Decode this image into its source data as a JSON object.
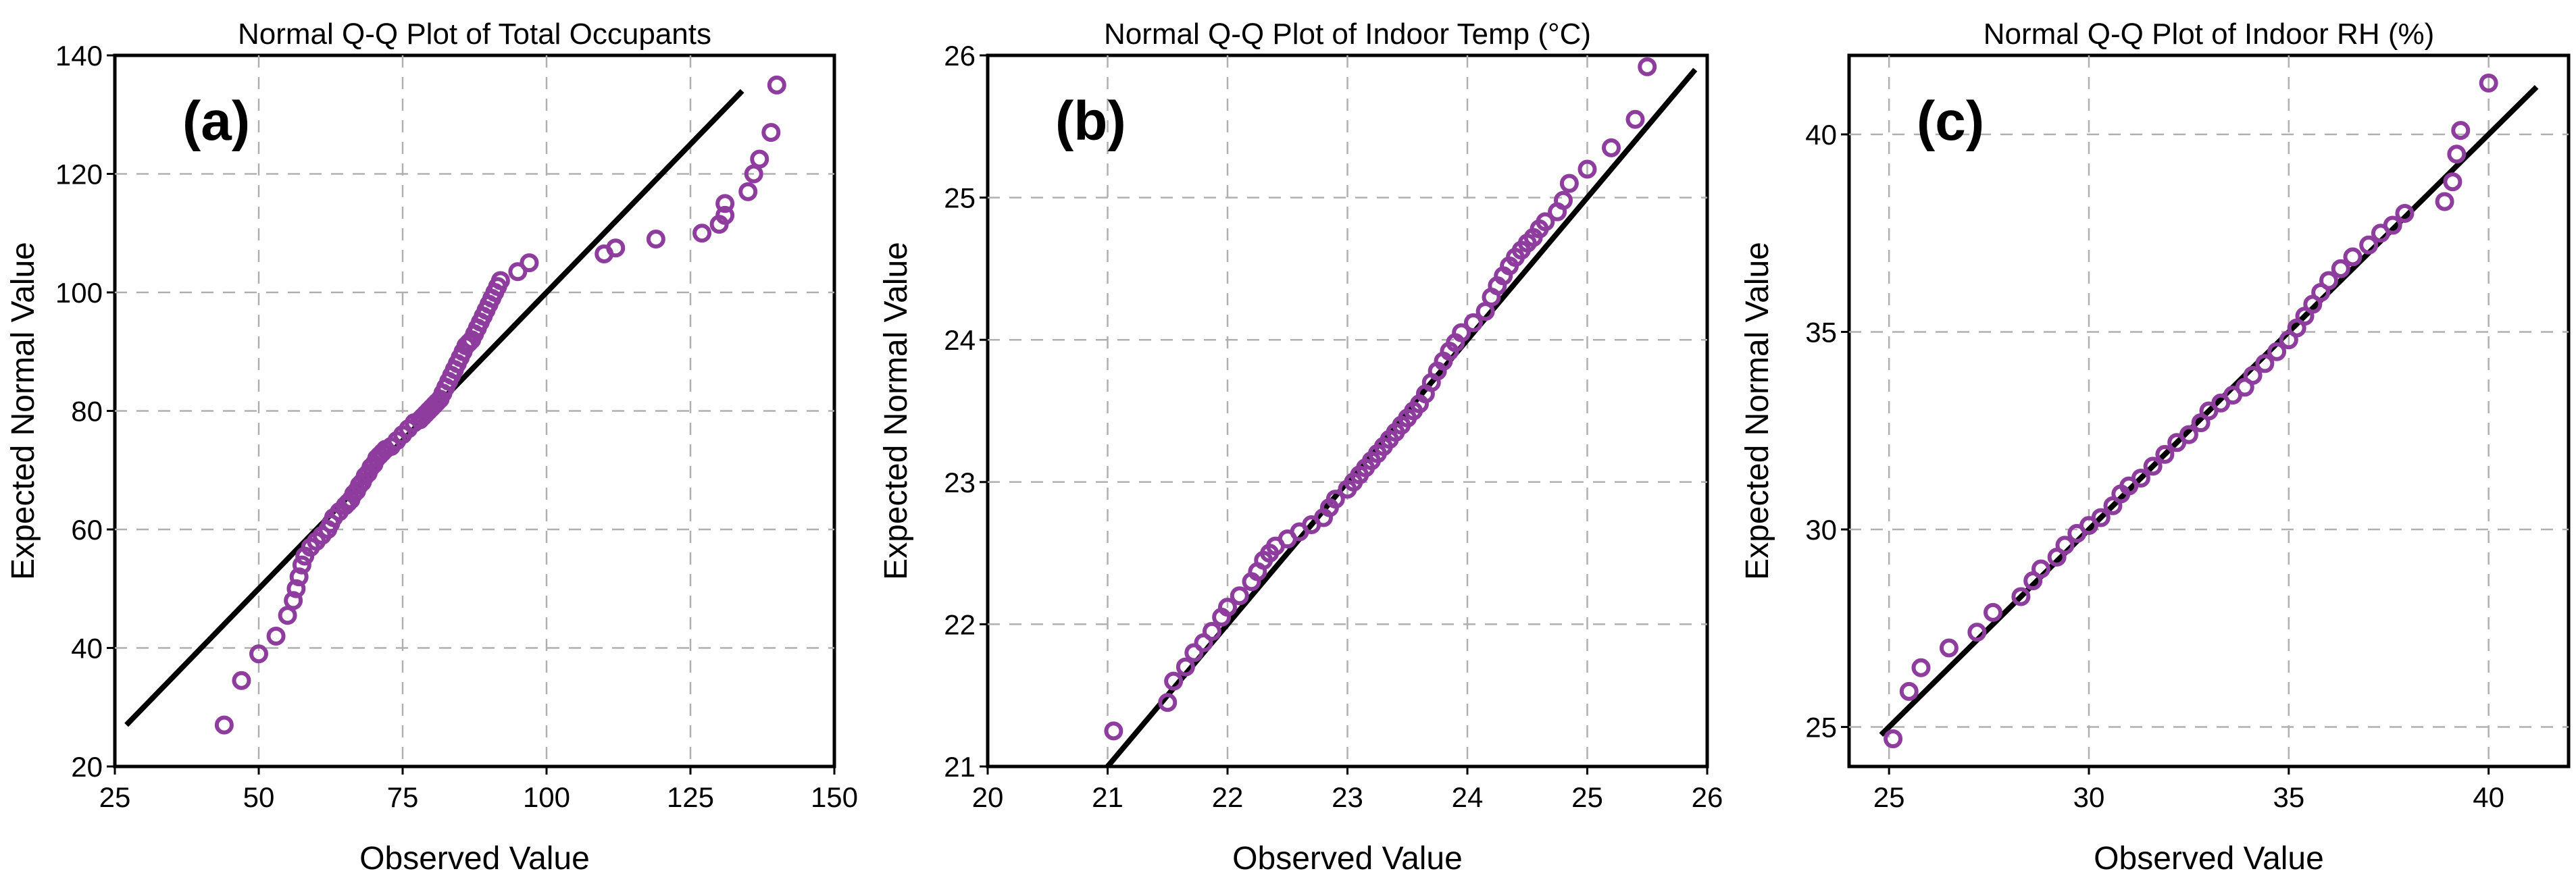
{
  "colors": {
    "marker": "#8e3d9e",
    "line": "#000000",
    "grid": "#b0b0b0"
  },
  "chart_data": [
    {
      "type": "scatter",
      "panel_label": "(a)",
      "title": "Normal Q-Q Plot of Total Occupants",
      "xlabel": "Observed Value",
      "ylabel": "Expected Normal Value",
      "xlim": [
        25,
        150
      ],
      "ylim": [
        20,
        140
      ],
      "xticks": [
        25,
        50,
        75,
        100,
        125,
        150
      ],
      "yticks": [
        20,
        40,
        60,
        80,
        100,
        120,
        140
      ],
      "grid": true,
      "reference_line": [
        [
          27,
          27
        ],
        [
          134,
          134
        ]
      ],
      "points": [
        [
          44,
          27
        ],
        [
          47,
          34.5
        ],
        [
          50,
          39
        ],
        [
          53,
          42
        ],
        [
          55,
          45.5
        ],
        [
          56,
          48
        ],
        [
          56.5,
          50
        ],
        [
          57,
          52
        ],
        [
          57.5,
          54
        ],
        [
          58,
          55.5
        ],
        [
          59,
          57
        ],
        [
          60,
          58
        ],
        [
          61,
          59
        ],
        [
          62,
          60
        ],
        [
          62.5,
          61
        ],
        [
          63,
          62
        ],
        [
          64,
          63
        ],
        [
          65,
          64
        ],
        [
          65.5,
          64.5
        ],
        [
          66,
          65
        ],
        [
          66.5,
          66
        ],
        [
          67,
          66.5
        ],
        [
          67.5,
          67.5
        ],
        [
          68,
          68
        ],
        [
          68.5,
          69
        ],
        [
          69,
          69.5
        ],
        [
          69.5,
          70.5
        ],
        [
          70,
          71
        ],
        [
          70.5,
          72
        ],
        [
          71,
          72.5
        ],
        [
          71.5,
          73
        ],
        [
          72,
          73.5
        ],
        [
          73,
          74
        ],
        [
          74,
          75
        ],
        [
          75,
          76
        ],
        [
          76,
          77
        ],
        [
          77,
          78
        ],
        [
          78,
          78.5
        ],
        [
          78.5,
          79
        ],
        [
          79,
          79.5
        ],
        [
          79.5,
          80
        ],
        [
          80,
          80.5
        ],
        [
          80.5,
          81
        ],
        [
          81,
          81.5
        ],
        [
          81.5,
          82
        ],
        [
          82,
          83
        ],
        [
          82.5,
          84
        ],
        [
          83,
          85
        ],
        [
          83.5,
          86
        ],
        [
          84,
          87
        ],
        [
          84.5,
          88
        ],
        [
          85,
          89
        ],
        [
          85.5,
          90
        ],
        [
          86,
          91
        ],
        [
          86.5,
          91.5
        ],
        [
          87,
          92
        ],
        [
          87.5,
          93
        ],
        [
          88,
          94
        ],
        [
          88.5,
          95
        ],
        [
          89,
          96
        ],
        [
          89.5,
          97
        ],
        [
          90,
          98
        ],
        [
          90.5,
          99
        ],
        [
          91,
          100
        ],
        [
          91.5,
          101
        ],
        [
          92,
          102
        ],
        [
          95,
          103.5
        ],
        [
          97,
          105
        ],
        [
          110,
          106.5
        ],
        [
          112,
          107.5
        ],
        [
          119,
          109
        ],
        [
          127,
          110
        ],
        [
          130,
          111.5
        ],
        [
          131,
          113
        ],
        [
          131,
          115
        ],
        [
          135,
          117
        ],
        [
          136,
          120
        ],
        [
          137,
          122.5
        ],
        [
          139,
          127
        ],
        [
          140,
          135
        ]
      ]
    },
    {
      "type": "scatter",
      "panel_label": "(b)",
      "title": "Normal Q-Q Plot of Indoor Temp (°C)",
      "xlabel": "Observed Value",
      "ylabel": "Expected Normal Value",
      "xlim": [
        20,
        26
      ],
      "ylim": [
        21,
        26
      ],
      "xticks": [
        20,
        21,
        22,
        23,
        24,
        25,
        26
      ],
      "yticks": [
        21,
        22,
        23,
        24,
        25,
        26
      ],
      "grid": true,
      "reference_line": [
        [
          21,
          21
        ],
        [
          25.9,
          25.9
        ]
      ],
      "points": [
        [
          21.05,
          21.25
        ],
        [
          21.5,
          21.45
        ],
        [
          21.55,
          21.6
        ],
        [
          21.65,
          21.7
        ],
        [
          21.72,
          21.8
        ],
        [
          21.8,
          21.87
        ],
        [
          21.87,
          21.95
        ],
        [
          21.95,
          22.05
        ],
        [
          22,
          22.12
        ],
        [
          22.1,
          22.2
        ],
        [
          22.2,
          22.3
        ],
        [
          22.25,
          22.37
        ],
        [
          22.3,
          22.45
        ],
        [
          22.35,
          22.5
        ],
        [
          22.4,
          22.55
        ],
        [
          22.5,
          22.6
        ],
        [
          22.6,
          22.65
        ],
        [
          22.7,
          22.7
        ],
        [
          22.8,
          22.75
        ],
        [
          22.85,
          22.82
        ],
        [
          22.9,
          22.88
        ],
        [
          23,
          22.95
        ],
        [
          23.05,
          23
        ],
        [
          23.1,
          23.05
        ],
        [
          23.15,
          23.1
        ],
        [
          23.2,
          23.15
        ],
        [
          23.25,
          23.2
        ],
        [
          23.3,
          23.25
        ],
        [
          23.35,
          23.3
        ],
        [
          23.4,
          23.35
        ],
        [
          23.45,
          23.4
        ],
        [
          23.5,
          23.45
        ],
        [
          23.55,
          23.5
        ],
        [
          23.6,
          23.55
        ],
        [
          23.65,
          23.62
        ],
        [
          23.7,
          23.7
        ],
        [
          23.75,
          23.78
        ],
        [
          23.8,
          23.85
        ],
        [
          23.85,
          23.92
        ],
        [
          23.9,
          23.98
        ],
        [
          23.95,
          24.05
        ],
        [
          24.05,
          24.12
        ],
        [
          24.15,
          24.2
        ],
        [
          24.2,
          24.3
        ],
        [
          24.25,
          24.38
        ],
        [
          24.3,
          24.45
        ],
        [
          24.35,
          24.52
        ],
        [
          24.4,
          24.58
        ],
        [
          24.45,
          24.63
        ],
        [
          24.5,
          24.68
        ],
        [
          24.55,
          24.72
        ],
        [
          24.6,
          24.78
        ],
        [
          24.65,
          24.83
        ],
        [
          24.75,
          24.9
        ],
        [
          24.8,
          24.98
        ],
        [
          24.85,
          25.1
        ],
        [
          25,
          25.2
        ],
        [
          25.2,
          25.35
        ],
        [
          25.4,
          25.55
        ],
        [
          25.5,
          25.92
        ]
      ]
    },
    {
      "type": "scatter",
      "panel_label": "(c)",
      "title": "Normal Q-Q Plot of Indoor RH (%)",
      "xlabel": "Observed Value",
      "ylabel": "Expected Normal Value",
      "xlim": [
        24,
        42
      ],
      "ylim": [
        24,
        42
      ],
      "xticks": [
        25,
        30,
        35,
        40
      ],
      "yticks": [
        25,
        30,
        35,
        40
      ],
      "grid": true,
      "reference_line": [
        [
          24.8,
          24.8
        ],
        [
          41.2,
          41.2
        ]
      ],
      "points": [
        [
          25.1,
          24.7
        ],
        [
          25.5,
          25.9
        ],
        [
          25.8,
          26.5
        ],
        [
          26.5,
          27
        ],
        [
          27.2,
          27.4
        ],
        [
          27.6,
          27.9
        ],
        [
          28.3,
          28.3
        ],
        [
          28.6,
          28.7
        ],
        [
          28.8,
          29
        ],
        [
          29.2,
          29.3
        ],
        [
          29.4,
          29.6
        ],
        [
          29.7,
          29.9
        ],
        [
          30,
          30.1
        ],
        [
          30.3,
          30.3
        ],
        [
          30.6,
          30.6
        ],
        [
          30.8,
          30.9
        ],
        [
          31,
          31.1
        ],
        [
          31.3,
          31.3
        ],
        [
          31.6,
          31.6
        ],
        [
          31.9,
          31.9
        ],
        [
          32.2,
          32.2
        ],
        [
          32.5,
          32.4
        ],
        [
          32.8,
          32.7
        ],
        [
          33,
          33
        ],
        [
          33.3,
          33.2
        ],
        [
          33.6,
          33.4
        ],
        [
          33.9,
          33.6
        ],
        [
          34.1,
          33.9
        ],
        [
          34.4,
          34.2
        ],
        [
          34.7,
          34.5
        ],
        [
          35,
          34.8
        ],
        [
          35.2,
          35.1
        ],
        [
          35.4,
          35.4
        ],
        [
          35.6,
          35.7
        ],
        [
          35.8,
          36
        ],
        [
          36,
          36.3
        ],
        [
          36.3,
          36.6
        ],
        [
          36.6,
          36.9
        ],
        [
          37,
          37.2
        ],
        [
          37.3,
          37.5
        ],
        [
          37.6,
          37.7
        ],
        [
          37.9,
          38
        ],
        [
          38.9,
          38.3
        ],
        [
          39.1,
          38.8
        ],
        [
          39.2,
          39.5
        ],
        [
          39.3,
          40.1
        ],
        [
          40,
          41.3
        ]
      ]
    }
  ]
}
